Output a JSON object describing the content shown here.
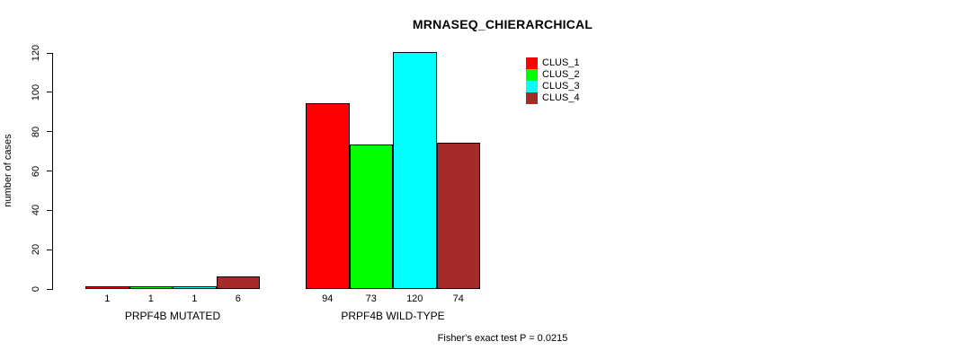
{
  "chart_data": {
    "type": "bar",
    "title": "MRNASEQ_CHIERARCHICAL",
    "ylabel": "number of cases",
    "ylim": [
      0,
      120
    ],
    "yticks": [
      0,
      20,
      40,
      60,
      80,
      100,
      120
    ],
    "grid": false,
    "legend_position": "top-right",
    "categories": [
      "PRPF4B MUTATED",
      "PRPF4B WILD-TYPE"
    ],
    "series": [
      {
        "name": "CLUS_1",
        "color": "#ff0000",
        "values": [
          1,
          94
        ]
      },
      {
        "name": "CLUS_2",
        "color": "#00ff00",
        "values": [
          1,
          73
        ]
      },
      {
        "name": "CLUS_3",
        "color": "#00ffff",
        "values": [
          1,
          120
        ]
      },
      {
        "name": "CLUS_4",
        "color": "#a52a2a",
        "values": [
          6,
          74
        ]
      }
    ],
    "annotation": "Fisher's exact test P = 0.0215"
  }
}
